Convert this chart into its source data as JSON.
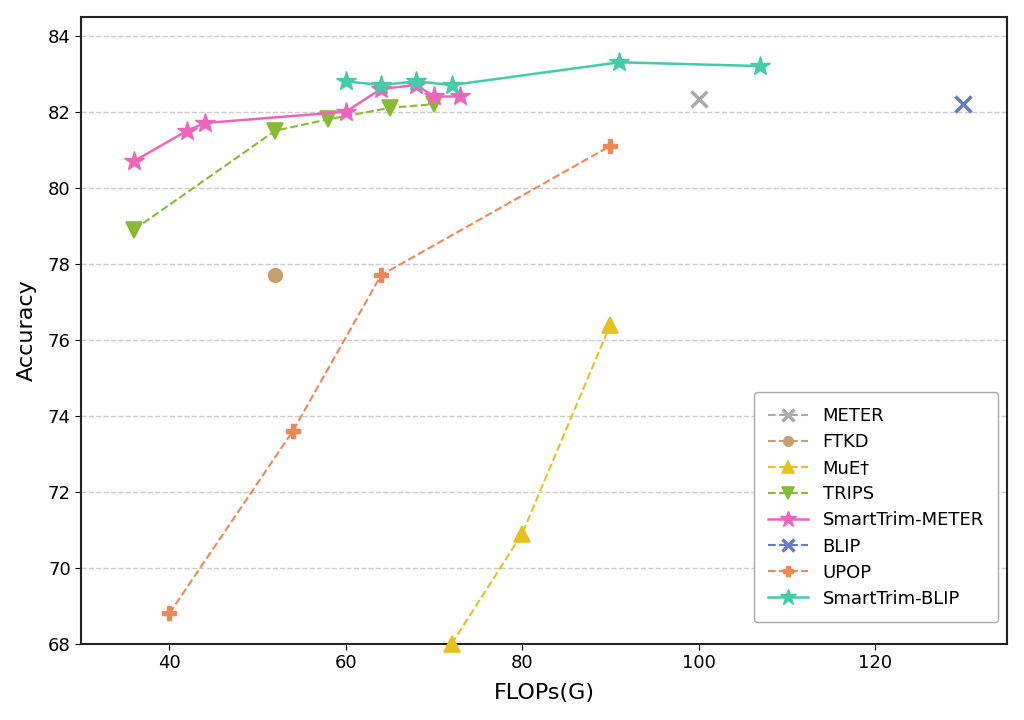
{
  "xlabel": "FLOPs(G)",
  "ylabel": "Accuracy",
  "xlim": [
    30,
    135
  ],
  "ylim": [
    68,
    84.5
  ],
  "yticks": [
    68,
    70,
    72,
    74,
    76,
    78,
    80,
    82,
    84
  ],
  "xticks": [
    40,
    60,
    80,
    100,
    120
  ],
  "series": {
    "METER": {
      "x": [
        100
      ],
      "y": [
        82.33
      ],
      "color": "#aaaaaa",
      "marker": "x",
      "linestyle": "--",
      "linewidth": 1.5,
      "markersize": 11,
      "markeredgewidth": 2.5,
      "label": "METER",
      "filled": false
    },
    "FTKD": {
      "x": [
        52
      ],
      "y": [
        77.7
      ],
      "color": "#c8a070",
      "marker": "o",
      "linestyle": "--",
      "linewidth": 1.5,
      "markersize": 10,
      "markeredgewidth": 1.0,
      "label": "FTKD",
      "filled": true
    },
    "MuE": {
      "x": [
        72,
        80,
        90
      ],
      "y": [
        68.0,
        70.9,
        76.4
      ],
      "color": "#e8c020",
      "marker": "^",
      "linestyle": "--",
      "linewidth": 1.5,
      "markersize": 11,
      "markeredgewidth": 1.2,
      "label": "MuE†",
      "filled": true
    },
    "TRIPS": {
      "x": [
        36,
        52,
        58,
        65,
        70
      ],
      "y": [
        78.9,
        81.5,
        81.8,
        82.1,
        82.2
      ],
      "color": "#88bb33",
      "marker": "v",
      "linestyle": "--",
      "linewidth": 1.5,
      "markersize": 11,
      "markeredgewidth": 1.2,
      "label": "TRIPS",
      "filled": true
    },
    "SmartTrim-METER": {
      "x": [
        36,
        42,
        44,
        60,
        64,
        68,
        70,
        73
      ],
      "y": [
        80.7,
        81.5,
        81.7,
        82.0,
        82.6,
        82.7,
        82.4,
        82.4
      ],
      "color": "#ee66bb",
      "marker": "*",
      "linestyle": "-",
      "linewidth": 1.8,
      "markersize": 15,
      "markeredgewidth": 1.0,
      "label": "SmartTrim-METER",
      "filled": true
    },
    "BLIP": {
      "x": [
        130
      ],
      "y": [
        82.2
      ],
      "color": "#6677cc",
      "marker": "x",
      "linestyle": "--",
      "linewidth": 1.5,
      "markersize": 11,
      "markeredgewidth": 2.5,
      "label": "BLIP",
      "filled": false
    },
    "UPOP": {
      "x": [
        40,
        54,
        64,
        90
      ],
      "y": [
        68.8,
        73.6,
        77.7,
        81.1
      ],
      "color": "#ee8855",
      "marker": "P",
      "linestyle": "--",
      "linewidth": 1.5,
      "markersize": 10,
      "markeredgewidth": 1.0,
      "label": "UPOP",
      "filled": true
    },
    "SmartTrim-BLIP": {
      "x": [
        60,
        64,
        68,
        72,
        91,
        107
      ],
      "y": [
        82.8,
        82.7,
        82.8,
        82.7,
        83.3,
        83.2
      ],
      "color": "#44ccaa",
      "marker": "*",
      "linestyle": "-",
      "linewidth": 1.8,
      "markersize": 15,
      "markeredgewidth": 1.0,
      "label": "SmartTrim-BLIP",
      "filled": true
    }
  },
  "background_color": "#ffffff",
  "grid_color": "#cccccc"
}
